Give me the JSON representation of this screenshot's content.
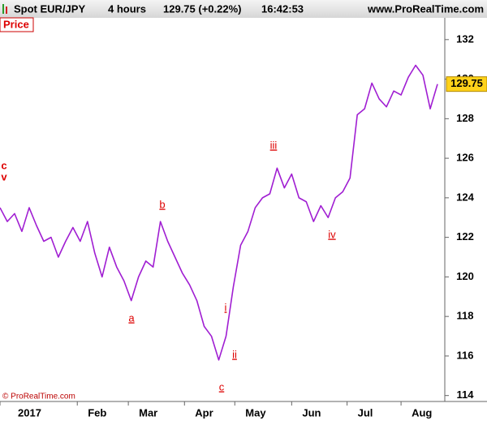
{
  "chart_data": {
    "type": "line",
    "header": {
      "symbol": "Spot EUR/JPY",
      "period": "4 hours",
      "quote": "129.75 (+0.22%)",
      "time": "16:42:53",
      "site": "www.ProRealTime.com"
    },
    "panel_label": "Price",
    "copyright": "© ProRealTime.com",
    "last_price": 129.75,
    "color": "#a01ed2",
    "values": [
      123.5,
      122.8,
      123.2,
      122.3,
      123.5,
      122.6,
      121.8,
      122,
      121,
      121.8,
      122.5,
      121.8,
      122.8,
      121.2,
      120,
      121.5,
      120.5,
      119.8,
      118.8,
      120,
      120.8,
      120.5,
      122.8,
      121.8,
      121,
      120.2,
      119.6,
      118.8,
      117.5,
      117,
      115.8,
      117,
      119.5,
      121.6,
      122.3,
      123.5,
      124,
      124.2,
      125.5,
      124.5,
      125.2,
      124,
      123.8,
      122.8,
      123.6,
      123,
      124,
      124.3,
      125,
      128.2,
      128.5,
      129.8,
      129,
      128.6,
      129.4,
      129.2,
      130.1,
      130.7,
      130.2,
      128.5,
      129.75
    ],
    "xlim": [
      0,
      61
    ],
    "xticks": [
      {
        "value": 0,
        "label": "2017"
      },
      {
        "value": 10.6,
        "label": "Feb"
      },
      {
        "value": 17.6,
        "label": "Mar"
      },
      {
        "value": 25.3,
        "label": "Apr"
      },
      {
        "value": 32.2,
        "label": "May"
      },
      {
        "value": 40,
        "label": "Jun"
      },
      {
        "value": 47.6,
        "label": "Jul"
      },
      {
        "value": 55,
        "label": "Aug"
      }
    ],
    "ylim": [
      113.7,
      133.1
    ],
    "yticks": [
      114,
      116,
      118,
      120,
      122,
      124,
      126,
      128,
      130,
      132
    ],
    "annotations": [
      "a",
      "b",
      "c",
      "i",
      "ii",
      "iii",
      "iv",
      "c",
      "v"
    ]
  }
}
